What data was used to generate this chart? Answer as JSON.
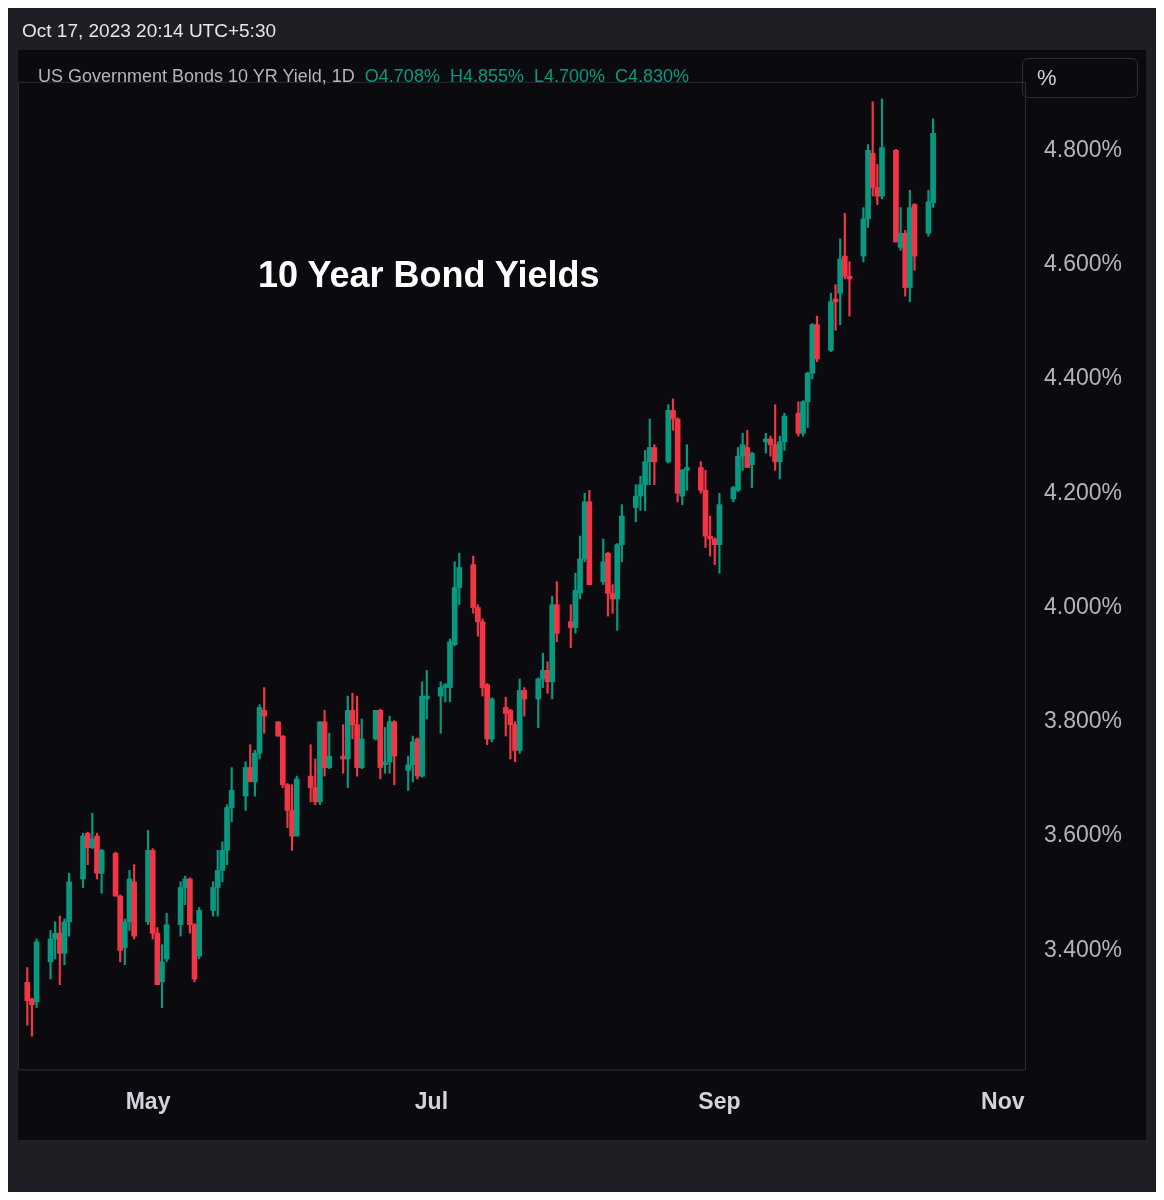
{
  "chart_data": {
    "type": "candlestick",
    "title": "10 Year Bond Yields",
    "subtitle": "US Government Bonds 10 YR Yield, 1D",
    "annotations": [
      "Oct 17, 2023 20:14 UTC+5:30",
      "O4.708%",
      "H4.855%",
      "L4.700%",
      "C4.830%",
      "%"
    ],
    "x": [
      "2023-04-05",
      "2023-04-06",
      "2023-04-07",
      "2023-04-10",
      "2023-04-11",
      "2023-04-12",
      "2023-04-13",
      "2023-04-14",
      "2023-04-17",
      "2023-04-18",
      "2023-04-19",
      "2023-04-20",
      "2023-04-21",
      "2023-04-24",
      "2023-04-25",
      "2023-04-26",
      "2023-04-27",
      "2023-04-28",
      "2023-05-01",
      "2023-05-02",
      "2023-05-03",
      "2023-05-04",
      "2023-05-05",
      "2023-05-08",
      "2023-05-09",
      "2023-05-10",
      "2023-05-11",
      "2023-05-12",
      "2023-05-15",
      "2023-05-16",
      "2023-05-17",
      "2023-05-18",
      "2023-05-19",
      "2023-05-22",
      "2023-05-23",
      "2023-05-24",
      "2023-05-25",
      "2023-05-26",
      "2023-05-29",
      "2023-05-30",
      "2023-05-31",
      "2023-06-01",
      "2023-06-02",
      "2023-06-05",
      "2023-06-06",
      "2023-06-07",
      "2023-06-08",
      "2023-06-09",
      "2023-06-12",
      "2023-06-13",
      "2023-06-14",
      "2023-06-15",
      "2023-06-16",
      "2023-06-19",
      "2023-06-20",
      "2023-06-21",
      "2023-06-22",
      "2023-06-23",
      "2023-06-26",
      "2023-06-27",
      "2023-06-28",
      "2023-06-29",
      "2023-06-30",
      "2023-07-03",
      "2023-07-04",
      "2023-07-05",
      "2023-07-06",
      "2023-07-07",
      "2023-07-10",
      "2023-07-11",
      "2023-07-12",
      "2023-07-13",
      "2023-07-14",
      "2023-07-17",
      "2023-07-18",
      "2023-07-19",
      "2023-07-20",
      "2023-07-21",
      "2023-07-24",
      "2023-07-25",
      "2023-07-26",
      "2023-07-27",
      "2023-07-28",
      "2023-07-31",
      "2023-08-01",
      "2023-08-02",
      "2023-08-03",
      "2023-08-04",
      "2023-08-07",
      "2023-08-08",
      "2023-08-09",
      "2023-08-10",
      "2023-08-11",
      "2023-08-14",
      "2023-08-15",
      "2023-08-16",
      "2023-08-17",
      "2023-08-18",
      "2023-08-21",
      "2023-08-22",
      "2023-08-23",
      "2023-08-24",
      "2023-08-25",
      "2023-08-28",
      "2023-08-29",
      "2023-08-30",
      "2023-08-31",
      "2023-09-01",
      "2023-09-04",
      "2023-09-05",
      "2023-09-06",
      "2023-09-07",
      "2023-09-08",
      "2023-09-11",
      "2023-09-12",
      "2023-09-13",
      "2023-09-14",
      "2023-09-15",
      "2023-09-18",
      "2023-09-19",
      "2023-09-20",
      "2023-09-21",
      "2023-09-22",
      "2023-09-25",
      "2023-09-26",
      "2023-09-27",
      "2023-09-28",
      "2023-09-29",
      "2023-10-02",
      "2023-10-03",
      "2023-10-04",
      "2023-10-05",
      "2023-10-06",
      "2023-10-09",
      "2023-10-10",
      "2023-10-11",
      "2023-10-12",
      "2023-10-13",
      "2023-10-16",
      "2023-10-17"
    ],
    "ohlc": [
      [
        3.344,
        3.37,
        3.269,
        3.312
      ],
      [
        3.315,
        3.316,
        3.25,
        3.305
      ],
      [
        3.31,
        3.42,
        3.3,
        3.415
      ],
      [
        3.38,
        3.435,
        3.35,
        3.42
      ],
      [
        3.42,
        3.45,
        3.385,
        3.43
      ],
      [
        3.43,
        3.46,
        3.34,
        3.395
      ],
      [
        3.395,
        3.455,
        3.375,
        3.45
      ],
      [
        3.45,
        3.535,
        3.425,
        3.52
      ],
      [
        3.525,
        3.605,
        3.51,
        3.6
      ],
      [
        3.605,
        3.607,
        3.55,
        3.58
      ],
      [
        3.58,
        3.64,
        3.578,
        3.595
      ],
      [
        3.6,
        3.605,
        3.525,
        3.535
      ],
      [
        3.535,
        3.577,
        3.5,
        3.575
      ],
      [
        3.57,
        3.572,
        3.495,
        3.495
      ],
      [
        3.495,
        3.497,
        3.38,
        3.4
      ],
      [
        3.405,
        3.455,
        3.375,
        3.45
      ],
      [
        3.45,
        3.54,
        3.435,
        3.525
      ],
      [
        3.52,
        3.55,
        3.42,
        3.425
      ],
      [
        3.45,
        3.61,
        3.445,
        3.575
      ],
      [
        3.575,
        3.578,
        3.42,
        3.43
      ],
      [
        3.43,
        3.44,
        3.34,
        3.34
      ],
      [
        3.345,
        3.41,
        3.3,
        3.38
      ],
      [
        3.385,
        3.465,
        3.38,
        3.445
      ],
      [
        3.445,
        3.52,
        3.425,
        3.51
      ],
      [
        3.51,
        3.53,
        3.48,
        3.525
      ],
      [
        3.525,
        3.527,
        3.43,
        3.445
      ],
      [
        3.445,
        3.447,
        3.345,
        3.35
      ],
      [
        3.39,
        3.475,
        3.385,
        3.47
      ],
      [
        3.47,
        3.52,
        3.46,
        3.51
      ],
      [
        3.51,
        3.575,
        3.46,
        3.54
      ],
      [
        3.54,
        3.59,
        3.52,
        3.575
      ],
      [
        3.575,
        3.655,
        3.55,
        3.65
      ],
      [
        3.65,
        3.72,
        3.625,
        3.68
      ],
      [
        3.67,
        3.73,
        3.645,
        3.72
      ],
      [
        3.72,
        3.76,
        3.695,
        3.695
      ],
      [
        3.695,
        3.75,
        3.67,
        3.745
      ],
      [
        3.745,
        3.83,
        3.735,
        3.825
      ],
      [
        3.82,
        3.86,
        3.78,
        3.81
      ],
      [
        3.8,
        3.8,
        3.775,
        3.775
      ],
      [
        3.775,
        3.776,
        3.685,
        3.69
      ],
      [
        3.69,
        3.692,
        3.615,
        3.645
      ],
      [
        3.645,
        3.69,
        3.575,
        3.6
      ],
      [
        3.6,
        3.705,
        3.6,
        3.7
      ],
      [
        3.705,
        3.76,
        3.66,
        3.685
      ],
      [
        3.685,
        3.735,
        3.655,
        3.66
      ],
      [
        3.66,
        3.8,
        3.655,
        3.8
      ],
      [
        3.8,
        3.82,
        3.705,
        3.72
      ],
      [
        3.72,
        3.78,
        3.718,
        3.74
      ],
      [
        3.74,
        3.795,
        3.71,
        3.735
      ],
      [
        3.735,
        3.845,
        3.685,
        3.82
      ],
      [
        3.82,
        3.85,
        3.77,
        3.795
      ],
      [
        3.795,
        3.845,
        3.705,
        3.72
      ],
      [
        3.72,
        3.805,
        3.718,
        3.77
      ],
      [
        3.77,
        3.82,
        3.768,
        3.82
      ],
      [
        3.82,
        3.822,
        3.7,
        3.72
      ],
      [
        3.725,
        3.79,
        3.71,
        3.73
      ],
      [
        3.73,
        3.81,
        3.71,
        3.8
      ],
      [
        3.8,
        3.802,
        3.69,
        3.74
      ],
      [
        3.715,
        3.74,
        3.68,
        3.725
      ],
      [
        3.725,
        3.775,
        3.695,
        3.765
      ],
      [
        3.77,
        3.772,
        3.7,
        3.705
      ],
      [
        3.705,
        3.87,
        3.703,
        3.845
      ],
      [
        3.84,
        3.89,
        3.805,
        3.845
      ],
      [
        3.845,
        3.87,
        3.78,
        3.86
      ],
      [
        3.86,
        3.867,
        3.835,
        3.865
      ],
      [
        3.86,
        3.945,
        3.835,
        3.94
      ],
      [
        3.935,
        4.08,
        3.933,
        4.035
      ],
      [
        4.035,
        4.095,
        4.005,
        4.07
      ],
      [
        4.075,
        4.09,
        3.99,
        4.0
      ],
      [
        4.0,
        4.005,
        3.95,
        3.975
      ],
      [
        3.975,
        3.98,
        3.845,
        3.86
      ],
      [
        3.865,
        3.867,
        3.76,
        3.77
      ],
      [
        3.77,
        3.842,
        3.765,
        3.84
      ],
      [
        3.825,
        3.843,
        3.775,
        3.815
      ],
      [
        3.82,
        3.822,
        3.735,
        3.795
      ],
      [
        3.795,
        3.8,
        3.73,
        3.75
      ],
      [
        3.75,
        3.875,
        3.745,
        3.855
      ],
      [
        3.855,
        3.86,
        3.81,
        3.84
      ],
      [
        3.84,
        3.877,
        3.79,
        3.875
      ],
      [
        3.875,
        3.92,
        3.86,
        3.89
      ],
      [
        3.89,
        3.905,
        3.85,
        3.87
      ],
      [
        3.87,
        4.02,
        3.84,
        4.005
      ],
      [
        4.005,
        4.045,
        3.94,
        3.955
      ],
      [
        3.975,
        4.005,
        3.93,
        3.965
      ],
      [
        3.965,
        4.06,
        3.955,
        4.03
      ],
      [
        4.025,
        4.125,
        4.015,
        4.085
      ],
      [
        4.085,
        4.2,
        4.08,
        4.185
      ],
      [
        4.185,
        4.205,
        4.04,
        4.04
      ],
      [
        4.045,
        4.12,
        4.04,
        4.08
      ],
      [
        4.095,
        4.097,
        3.985,
        4.025
      ],
      [
        4.025,
        4.04,
        3.99,
        4.015
      ],
      [
        4.015,
        4.112,
        3.96,
        4.11
      ],
      [
        4.11,
        4.18,
        4.08,
        4.16
      ],
      [
        4.175,
        4.215,
        4.15,
        4.195
      ],
      [
        4.195,
        4.23,
        4.17,
        4.215
      ],
      [
        4.215,
        4.275,
        4.17,
        4.255
      ],
      [
        4.255,
        4.33,
        4.215,
        4.28
      ],
      [
        4.28,
        4.285,
        4.215,
        4.255
      ],
      [
        4.255,
        4.355,
        4.253,
        4.345
      ],
      [
        4.345,
        4.365,
        4.31,
        4.33
      ],
      [
        4.33,
        4.332,
        4.185,
        4.2
      ],
      [
        4.195,
        4.242,
        4.18,
        4.24
      ],
      [
        4.24,
        4.285,
        4.205,
        4.245
      ],
      [
        4.245,
        4.255,
        4.2,
        4.205
      ],
      [
        4.205,
        4.24,
        4.105,
        4.125
      ],
      [
        4.125,
        4.16,
        4.09,
        4.12
      ],
      [
        4.12,
        4.122,
        4.075,
        4.11
      ],
      [
        4.11,
        4.2,
        4.06,
        4.18
      ],
      [
        4.19,
        4.212,
        4.185,
        4.21
      ],
      [
        4.205,
        4.28,
        4.203,
        4.265
      ],
      [
        4.265,
        4.305,
        4.24,
        4.285
      ],
      [
        4.28,
        4.31,
        4.245,
        4.245
      ],
      [
        4.25,
        4.272,
        4.21,
        4.27
      ],
      [
        4.29,
        4.305,
        4.27,
        4.295
      ],
      [
        4.295,
        4.3,
        4.265,
        4.285
      ],
      [
        4.285,
        4.355,
        4.24,
        4.255
      ],
      [
        4.255,
        4.3,
        4.225,
        4.29
      ],
      [
        4.29,
        4.34,
        4.275,
        4.335
      ],
      [
        4.34,
        4.36,
        4.3,
        4.305
      ],
      [
        4.305,
        4.362,
        4.3,
        4.36
      ],
      [
        4.36,
        4.412,
        4.315,
        4.41
      ],
      [
        4.41,
        4.497,
        4.4,
        4.495
      ],
      [
        4.495,
        4.51,
        4.43,
        4.435
      ],
      [
        4.45,
        4.55,
        4.448,
        4.535
      ],
      [
        4.54,
        4.565,
        4.485,
        4.535
      ],
      [
        4.55,
        4.645,
        4.495,
        4.61
      ],
      [
        4.615,
        4.69,
        4.575,
        4.58
      ],
      [
        4.58,
        4.605,
        4.51,
        4.575
      ],
      [
        4.615,
        4.7,
        4.605,
        4.68
      ],
      [
        4.68,
        4.81,
        4.665,
        4.8
      ],
      [
        4.795,
        4.885,
        4.72,
        4.735
      ],
      [
        4.735,
        4.775,
        4.705,
        4.72
      ],
      [
        4.72,
        4.89,
        4.715,
        4.805
      ],
      [
        4.8,
        4.802,
        4.64,
        4.64
      ],
      [
        4.63,
        4.7,
        4.625,
        4.655
      ],
      [
        4.655,
        4.66,
        4.545,
        4.56
      ],
      [
        4.56,
        4.73,
        4.535,
        4.7
      ],
      [
        4.705,
        4.707,
        4.59,
        4.615
      ],
      [
        4.655,
        4.73,
        4.65,
        4.71
      ],
      [
        4.708,
        4.855,
        4.7,
        4.83
      ]
    ],
    "colors": [
      "#f23645",
      "#f23645",
      "#089981",
      "#089981",
      "#089981",
      "#f23645",
      "#089981",
      "#089981",
      "#089981",
      "#f23645",
      "#089981",
      "#f23645",
      "#089981",
      "#f23645",
      "#f23645",
      "#089981",
      "#089981",
      "#f23645",
      "#089981",
      "#f23645",
      "#f23645",
      "#089981",
      "#089981",
      "#089981",
      "#089981",
      "#f23645",
      "#f23645",
      "#089981",
      "#089981",
      "#089981",
      "#089981",
      "#089981",
      "#089981",
      "#089981",
      "#f23645",
      "#089981",
      "#089981",
      "#f23645",
      "#f23645",
      "#f23645",
      "#f23645",
      "#f23645",
      "#089981",
      "#f23645",
      "#f23645",
      "#089981",
      "#f23645",
      "#089981",
      "#f23645",
      "#089981",
      "#f23645",
      "#f23645",
      "#089981",
      "#089981",
      "#f23645",
      "#089981",
      "#089981",
      "#f23645",
      "#089981",
      "#089981",
      "#f23645",
      "#089981",
      "#089981",
      "#089981",
      "#089981",
      "#089981",
      "#089981",
      "#089981",
      "#f23645",
      "#f23645",
      "#f23645",
      "#f23645",
      "#089981",
      "#f23645",
      "#f23645",
      "#f23645",
      "#089981",
      "#f23645",
      "#089981",
      "#089981",
      "#f23645",
      "#089981",
      "#f23645",
      "#f23645",
      "#089981",
      "#089981",
      "#089981",
      "#f23645",
      "#089981",
      "#f23645",
      "#f23645",
      "#089981",
      "#089981",
      "#089981",
      "#089981",
      "#089981",
      "#089981",
      "#f23645",
      "#089981",
      "#f23645",
      "#f23645",
      "#089981",
      "#089981",
      "#f23645",
      "#f23645",
      "#f23645",
      "#f23645",
      "#089981",
      "#089981",
      "#089981",
      "#089981",
      "#f23645",
      "#089981",
      "#089981",
      "#f23645",
      "#f23645",
      "#089981",
      "#089981",
      "#f23645",
      "#089981",
      "#089981",
      "#089981",
      "#f23645",
      "#089981",
      "#f23645",
      "#089981",
      "#f23645",
      "#f23645",
      "#089981",
      "#089981",
      "#f23645",
      "#f23645",
      "#089981",
      "#f23645",
      "#089981",
      "#f23645",
      "#089981",
      "#f23645",
      "#089981",
      "#089981"
    ],
    "xlim": [
      "2023-04-03",
      "2023-11-06"
    ],
    "xticks": [
      {
        "value": "2023-05-01",
        "label": "May"
      },
      {
        "value": "2023-07-01",
        "label": "Jul"
      },
      {
        "value": "2023-09-01",
        "label": "Sep"
      },
      {
        "value": "2023-11-01",
        "label": "Nov"
      }
    ],
    "ylim": [
      3.19,
      4.92
    ],
    "yticks": [
      {
        "value": 3.4,
        "label": "3.400%"
      },
      {
        "value": 3.6,
        "label": "3.600%"
      },
      {
        "value": 3.8,
        "label": "3.800%"
      },
      {
        "value": 4.0,
        "label": "4.000%"
      },
      {
        "value": 4.2,
        "label": "4.200%"
      },
      {
        "value": 4.4,
        "label": "4.400%"
      },
      {
        "value": 4.6,
        "label": "4.600%"
      },
      {
        "value": 4.8,
        "label": "4.800%"
      }
    ]
  }
}
